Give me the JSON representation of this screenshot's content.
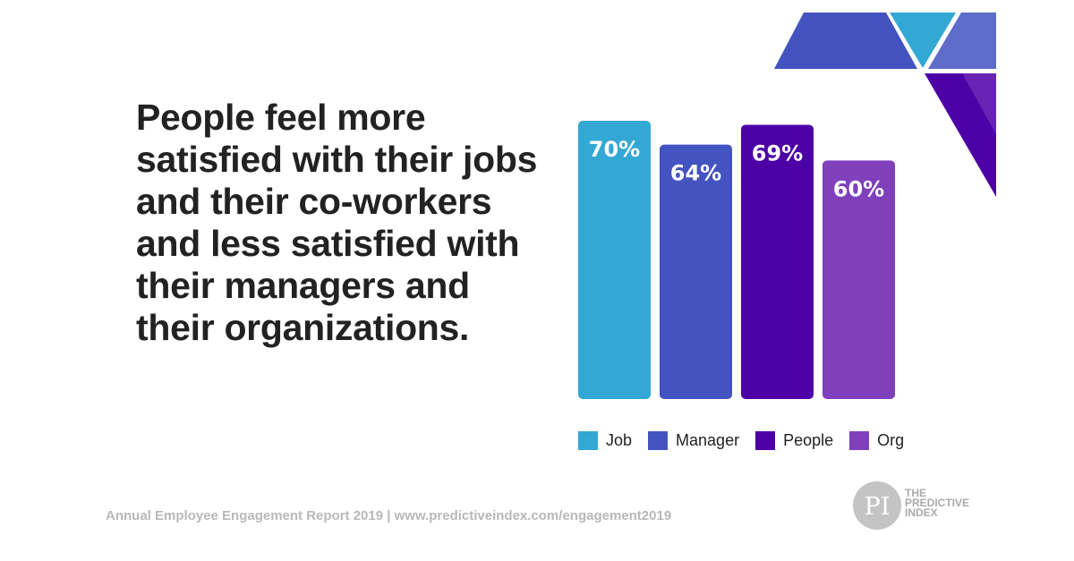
{
  "headline": "People feel more satisfied with their jobs and their co-workers and less satisfied with their managers and their organizations.",
  "chart_data": {
    "type": "bar",
    "categories": [
      "Job",
      "Manager",
      "People",
      "Org"
    ],
    "values": [
      70,
      64,
      69,
      60
    ],
    "data_labels": [
      "70%",
      "64%",
      "69%",
      "60%"
    ],
    "colors": [
      "#33a8d4",
      "#4353c0",
      "#4d00a6",
      "#8040bc"
    ],
    "ylim": [
      0,
      70
    ],
    "grid": false,
    "legend": "bottom"
  },
  "footer": "Annual Employee Engagement Report 2019  |  www.predictiveindex.com/engagement2019",
  "logo": {
    "mark": "PI",
    "lines": [
      "THE",
      "PREDICTIVE",
      "INDEX"
    ]
  }
}
